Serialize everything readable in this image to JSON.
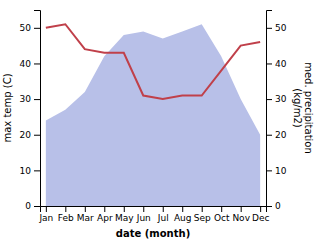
{
  "chart_data": {
    "type": "line",
    "categories": [
      "Jan",
      "Feb",
      "Mar",
      "Apr",
      "May",
      "Jun",
      "Jul",
      "Aug",
      "Sep",
      "Oct",
      "Nov",
      "Dec"
    ],
    "series": [
      {
        "type": "area",
        "color": "#b8c0e8",
        "values": [
          24,
          27,
          32,
          42,
          48,
          49,
          47,
          49,
          51,
          42,
          30,
          20
        ]
      },
      {
        "type": "line",
        "color": "#c0404a",
        "axis": "y2",
        "values": [
          50,
          51,
          44,
          43,
          43,
          31,
          30,
          31,
          31,
          38,
          45,
          46
        ]
      }
    ],
    "xlabel": "date (month)",
    "ylabel": "max temp (C)",
    "y2label": "med. precipitation\n(kg/m2)",
    "ylim": [
      0,
      55
    ],
    "yticks": [
      0,
      10,
      20,
      30,
      40,
      50
    ],
    "y2lim": [
      0,
      55
    ],
    "y2ticks": [
      0,
      10,
      20,
      30,
      40,
      50
    ],
    "grid": false
  }
}
